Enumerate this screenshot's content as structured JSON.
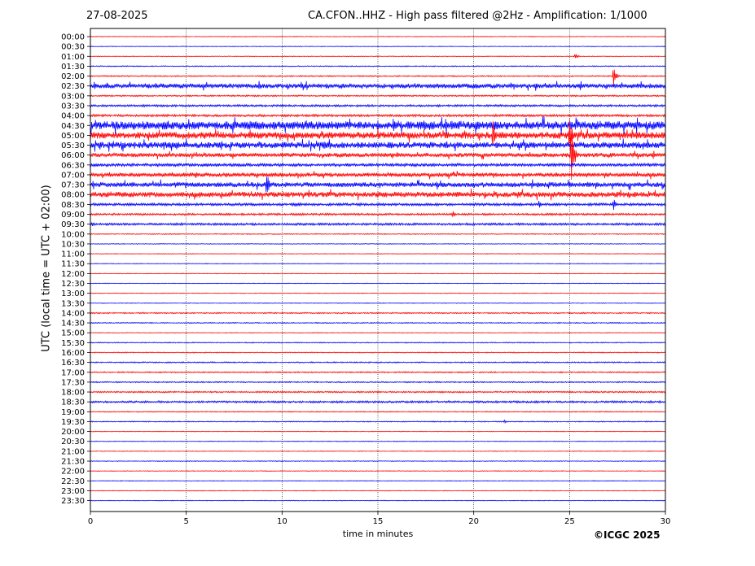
{
  "header": {
    "date": "27-08-2025",
    "title": "CA.CFON..HHZ - High pass filtered @2Hz - Amplification: 1/1000"
  },
  "footer": {
    "copyright": "©ICGC 2025"
  },
  "chart_data": {
    "type": "line",
    "title": "CA.CFON..HHZ - High pass filtered @2Hz - Amplification: 1/1000",
    "xlabel": "time in minutes",
    "ylabel": "UTC (local time = UTC + 02:00)",
    "xlim": [
      0,
      30
    ],
    "x_ticks": [
      0,
      5,
      10,
      15,
      20,
      25,
      30
    ],
    "y_ticks": [
      "00:00",
      "00:30",
      "01:00",
      "01:30",
      "02:00",
      "02:30",
      "03:00",
      "03:30",
      "04:00",
      "04:30",
      "05:00",
      "05:30",
      "06:00",
      "06:30",
      "07:00",
      "07:30",
      "08:00",
      "08:30",
      "09:00",
      "09:30",
      "10:00",
      "10:30",
      "11:00",
      "11:30",
      "12:00",
      "12:30",
      "13:00",
      "13:30",
      "14:00",
      "14:30",
      "15:00",
      "15:30",
      "16:00",
      "16:30",
      "17:00",
      "17:30",
      "18:00",
      "18:30",
      "19:00",
      "19:30",
      "20:00",
      "20:30",
      "21:00",
      "21:30",
      "22:00",
      "22:30",
      "23:00",
      "23:30"
    ],
    "grid": "vertical dotted lines at 5-minute intervals",
    "trace_colors": [
      "#ff0000",
      "#0000ff"
    ],
    "trace_amplitude": [
      0.3,
      0.3,
      0.3,
      0.4,
      0.5,
      1.8,
      0.6,
      0.8,
      0.9,
      3.2,
      2.6,
      2.4,
      1.6,
      1.2,
      1.6,
      1.9,
      2.1,
      1.0,
      0.8,
      0.9,
      0.4,
      0.3,
      0.3,
      0.3,
      0.3,
      0.3,
      0.3,
      0.3,
      0.5,
      0.4,
      0.3,
      0.4,
      0.4,
      0.5,
      0.5,
      0.5,
      0.6,
      0.8,
      0.4,
      0.4,
      0.3,
      0.3,
      0.3,
      0.3,
      0.3,
      0.3,
      0.3,
      0.3
    ],
    "events": [
      {
        "row": 2,
        "minute": 25.3,
        "amplitude": 4
      },
      {
        "row": 4,
        "minute": 27.3,
        "amplitude": 13
      },
      {
        "row": 5,
        "minute": 0.2,
        "amplitude": 5
      },
      {
        "row": 5,
        "minute": 0.8,
        "amplitude": 3
      },
      {
        "row": 5,
        "minute": 8.8,
        "amplitude": 7
      },
      {
        "row": 5,
        "minute": 13.1,
        "amplitude": 4
      },
      {
        "row": 5,
        "minute": 29.2,
        "amplitude": 4
      },
      {
        "row": 9,
        "minute": 3.0,
        "amplitude": 5
      },
      {
        "row": 9,
        "minute": 15.8,
        "amplitude": 10
      },
      {
        "row": 9,
        "minute": 15.0,
        "amplitude": 6
      },
      {
        "row": 9,
        "minute": 17.8,
        "amplitude": 6
      },
      {
        "row": 9,
        "minute": 19.2,
        "amplitude": 7
      },
      {
        "row": 10,
        "minute": 21.0,
        "amplitude": 18
      },
      {
        "row": 10,
        "minute": 25.0,
        "amplitude": 30
      },
      {
        "row": 10,
        "minute": 28.5,
        "amplitude": 5
      },
      {
        "row": 11,
        "minute": 0.5,
        "amplitude": 6
      },
      {
        "row": 11,
        "minute": 10.0,
        "amplitude": 6
      },
      {
        "row": 11,
        "minute": 12.2,
        "amplitude": 8
      },
      {
        "row": 11,
        "minute": 14.8,
        "amplitude": 5
      },
      {
        "row": 12,
        "minute": 16.0,
        "amplitude": 5
      },
      {
        "row": 12,
        "minute": 25.1,
        "amplitude": 45
      },
      {
        "row": 12,
        "minute": 28.3,
        "amplitude": 4
      },
      {
        "row": 14,
        "minute": 1.0,
        "amplitude": 4
      },
      {
        "row": 14,
        "minute": 5.5,
        "amplitude": 5
      },
      {
        "row": 15,
        "minute": 9.2,
        "amplitude": 16
      },
      {
        "row": 15,
        "minute": 26.4,
        "amplitude": 4
      },
      {
        "row": 16,
        "minute": 1.8,
        "amplitude": 5
      },
      {
        "row": 16,
        "minute": 5.7,
        "amplitude": 5
      },
      {
        "row": 16,
        "minute": 8.0,
        "amplitude": 4
      },
      {
        "row": 17,
        "minute": 10.7,
        "amplitude": 3
      },
      {
        "row": 17,
        "minute": 23.4,
        "amplitude": 5
      },
      {
        "row": 17,
        "minute": 27.3,
        "amplitude": 8
      },
      {
        "row": 18,
        "minute": 18.9,
        "amplitude": 5
      },
      {
        "row": 18,
        "minute": 16.7,
        "amplitude": 2
      },
      {
        "row": 19,
        "minute": 0.1,
        "amplitude": 4
      },
      {
        "row": 37,
        "minute": 23.3,
        "amplitude": 2
      },
      {
        "row": 39,
        "minute": 21.6,
        "amplitude": 2
      }
    ]
  }
}
